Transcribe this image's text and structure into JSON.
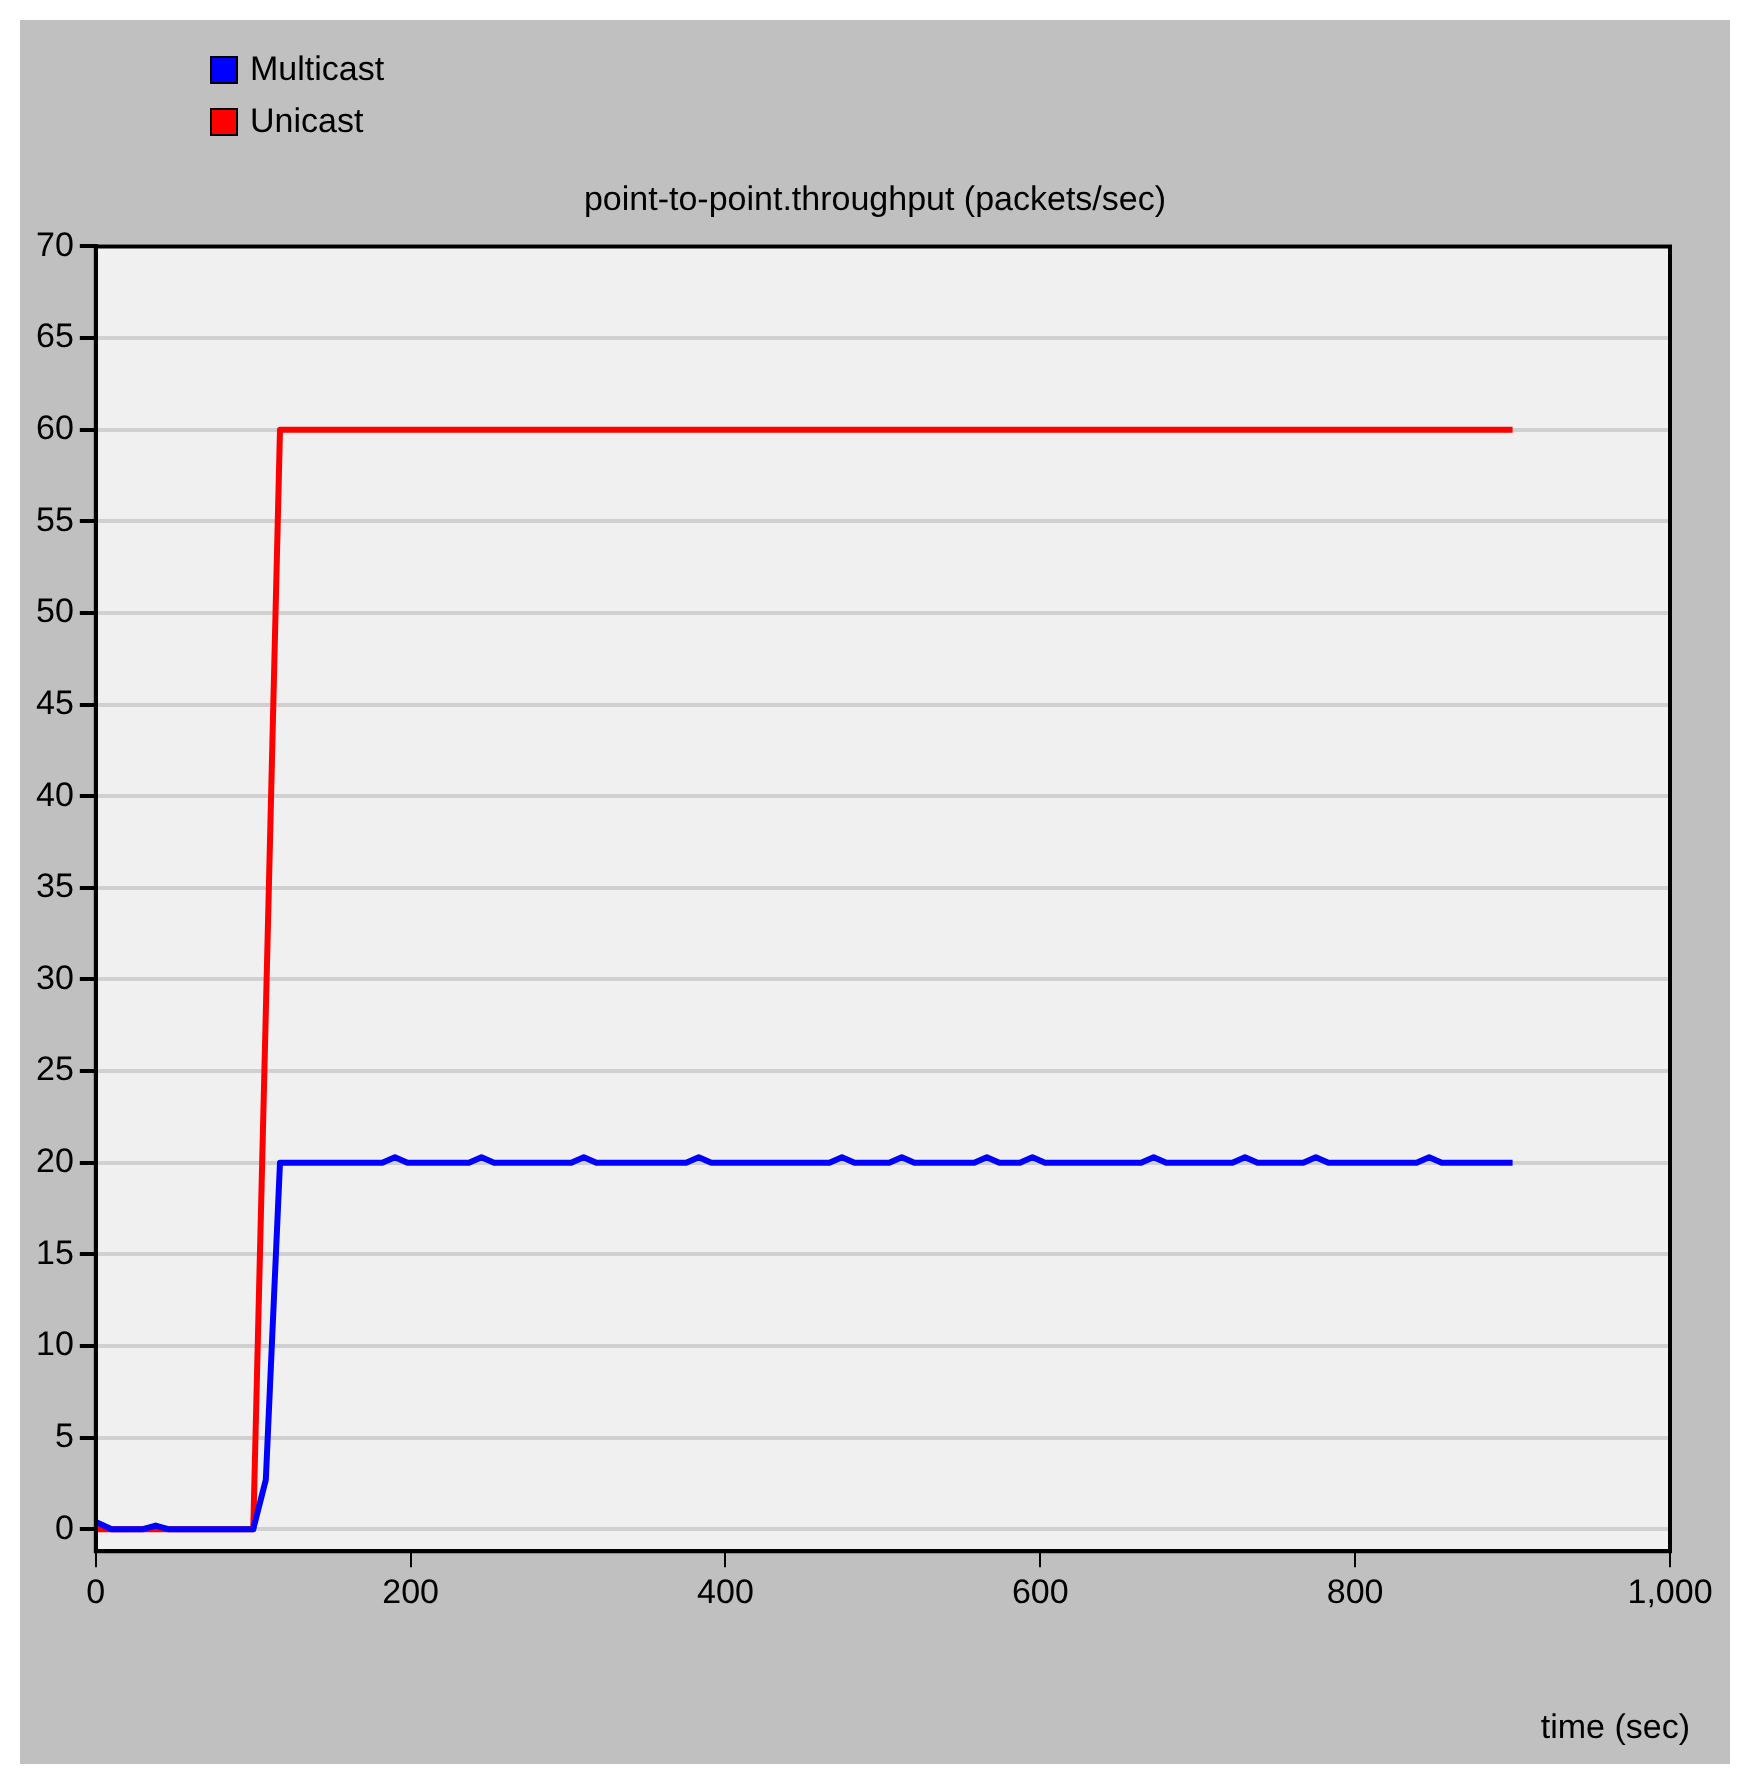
{
  "chart_data": {
    "type": "line",
    "title": "point-to-point.throughput (packets/sec)",
    "xlabel": "time (sec)",
    "xlim": [
      0,
      1000
    ],
    "xticks": [
      0,
      200,
      400,
      600,
      800,
      {
        "value": 1000,
        "label": "1,000"
      }
    ],
    "ylim": [
      -1.2,
      70
    ],
    "yticks": [
      0,
      5,
      10,
      15,
      20,
      25,
      30,
      35,
      40,
      45,
      50,
      55,
      60,
      65,
      70
    ],
    "grid": "y",
    "legend": "top left",
    "marker": "none",
    "line_style": "solid",
    "series": [
      {
        "name": "Multicast",
        "color": "#0000ff",
        "x": [
          0,
          10,
          30,
          38,
          46,
          100,
          108,
          117,
          182,
          190,
          198,
          237,
          245,
          253,
          302,
          310,
          318,
          375,
          383,
          391,
          466,
          474,
          482,
          504,
          512,
          520,
          558,
          566,
          574,
          587,
          595,
          603,
          664,
          672,
          680,
          722,
          730,
          738,
          767,
          775,
          783,
          839,
          847,
          855,
          900
        ],
        "values": [
          0.4,
          0,
          0,
          0.2,
          0,
          0,
          2.7,
          20,
          20,
          20.3,
          20,
          20,
          20.3,
          20,
          20,
          20.3,
          20,
          20,
          20.3,
          20,
          20,
          20.3,
          20,
          20,
          20.3,
          20,
          20,
          20.3,
          20,
          20,
          20.3,
          20,
          20,
          20.3,
          20,
          20,
          20.3,
          20,
          20,
          20.3,
          20,
          20,
          20.3,
          20,
          20
        ]
      },
      {
        "name": "Unicast",
        "color": "#ff0000",
        "x": [
          0,
          100,
          117,
          900
        ],
        "values": [
          0,
          0,
          60,
          60
        ]
      }
    ]
  }
}
